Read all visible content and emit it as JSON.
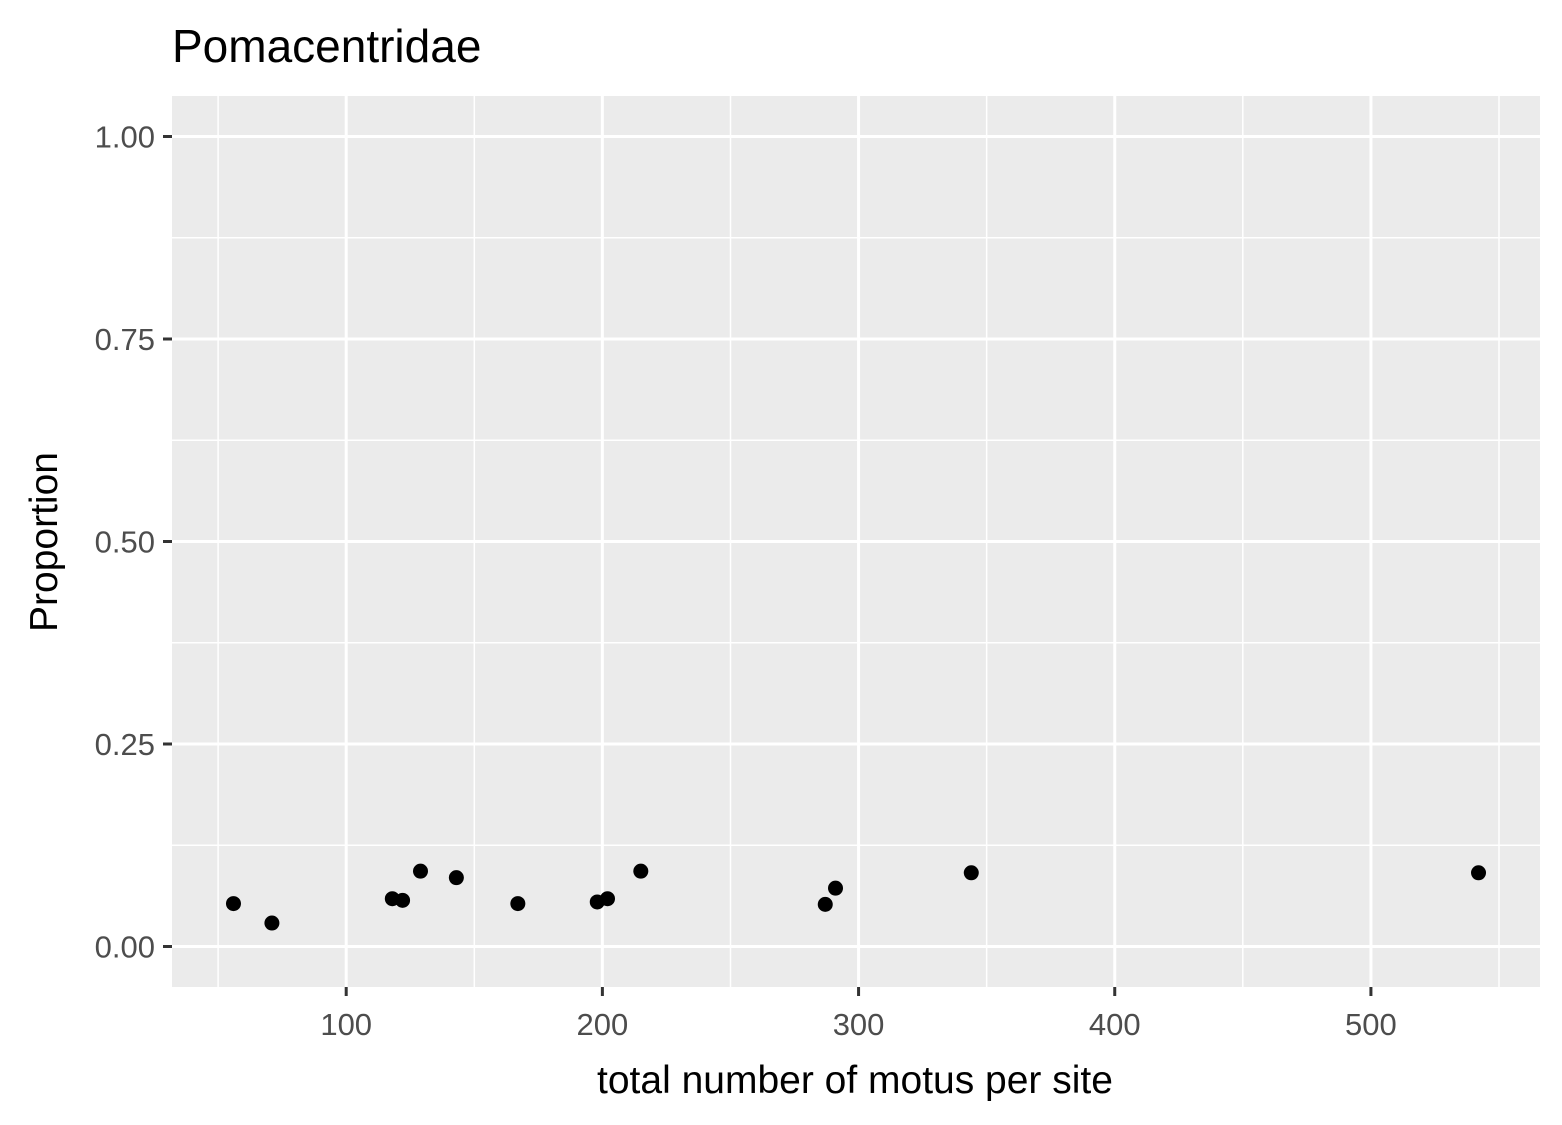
{
  "chart_data": {
    "type": "scatter",
    "title": "Pomacentridae",
    "xlabel": "total number of motus per site",
    "ylabel": "Proportion",
    "xlim": [
      32,
      566
    ],
    "ylim": [
      -0.05,
      1.05
    ],
    "x_ticks": [
      100,
      200,
      300,
      400,
      500
    ],
    "x_tick_labels": [
      "100",
      "200",
      "300",
      "400",
      "500"
    ],
    "x_minor_ticks": [
      50,
      150,
      250,
      350,
      450,
      550
    ],
    "y_ticks": [
      0,
      0.25,
      0.5,
      0.75,
      1.0
    ],
    "y_tick_labels": [
      "0.00",
      "0.25",
      "0.50",
      "0.75",
      "1.00"
    ],
    "y_minor_ticks": [
      0.125,
      0.375,
      0.625,
      0.875
    ],
    "grid": true,
    "panel_background": "#ebebeb",
    "grid_color": "#ffffff",
    "point_color": "#000000",
    "points": [
      {
        "x": 56,
        "y": 0.053
      },
      {
        "x": 71,
        "y": 0.029
      },
      {
        "x": 118,
        "y": 0.059
      },
      {
        "x": 122,
        "y": 0.057
      },
      {
        "x": 129,
        "y": 0.093
      },
      {
        "x": 143,
        "y": 0.085
      },
      {
        "x": 167,
        "y": 0.053
      },
      {
        "x": 198,
        "y": 0.055
      },
      {
        "x": 202,
        "y": 0.059
      },
      {
        "x": 215,
        "y": 0.093
      },
      {
        "x": 287,
        "y": 0.052
      },
      {
        "x": 291,
        "y": 0.072
      },
      {
        "x": 344,
        "y": 0.091
      },
      {
        "x": 542,
        "y": 0.091
      }
    ]
  }
}
